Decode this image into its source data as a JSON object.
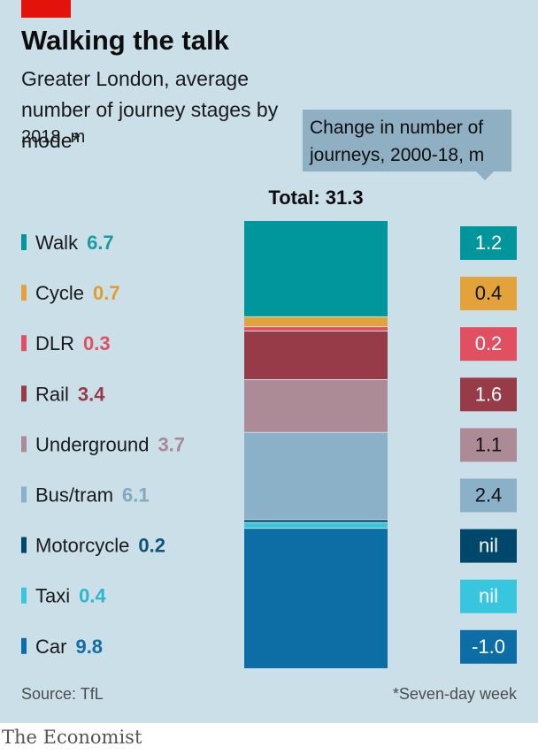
{
  "header": {
    "title": "Walking the talk",
    "subtitle": "Greater London, average number of journey stages by mode*",
    "unit": "2018, m"
  },
  "callout": {
    "text": "Change in number of journeys, 2000-18, m"
  },
  "footer": {
    "source": "Source: TfL",
    "footnote": "*Seven-day week",
    "brand": "The Economist"
  },
  "colors": {
    "panel": "#cbdfe9",
    "brand_red": "#e3120b"
  },
  "chart_data": {
    "type": "bar",
    "stacked": true,
    "total_label": "Total: 31.3",
    "total": 31.3,
    "categories": [
      "Walk",
      "Cycle",
      "DLR",
      "Rail",
      "Underground",
      "Bus/tram",
      "Motorcycle",
      "Taxi",
      "Car"
    ],
    "values": [
      6.7,
      0.7,
      0.3,
      3.4,
      3.7,
      6.1,
      0.2,
      0.4,
      9.8
    ],
    "value_labels": [
      "6.7",
      "0.7",
      "0.3",
      "3.4",
      "3.7",
      "6.1",
      "0.2",
      "0.4",
      "9.8"
    ],
    "change_labels": [
      "1.2",
      "0.4",
      "0.2",
      "1.6",
      "1.1",
      "2.4",
      "nil",
      "nil",
      "-1.0"
    ],
    "colors": [
      "#00969b",
      "#e3a33a",
      "#e05060",
      "#973b49",
      "#ad8b96",
      "#8ab1c8",
      "#00486b",
      "#37c6de",
      "#0c6ea4"
    ],
    "text_colors": [
      "#1b9ba0",
      "#e39d2a",
      "#e05060",
      "#973b49",
      "#a98892",
      "#7ea9bf",
      "#0d5477",
      "#2cb6cf",
      "#0f6ea3"
    ],
    "change_text_colors": [
      "#ffffff",
      "#111111",
      "#ffffff",
      "#ffffff",
      "#111111",
      "#111111",
      "#ffffff",
      "#ffffff",
      "#ffffff"
    ]
  }
}
